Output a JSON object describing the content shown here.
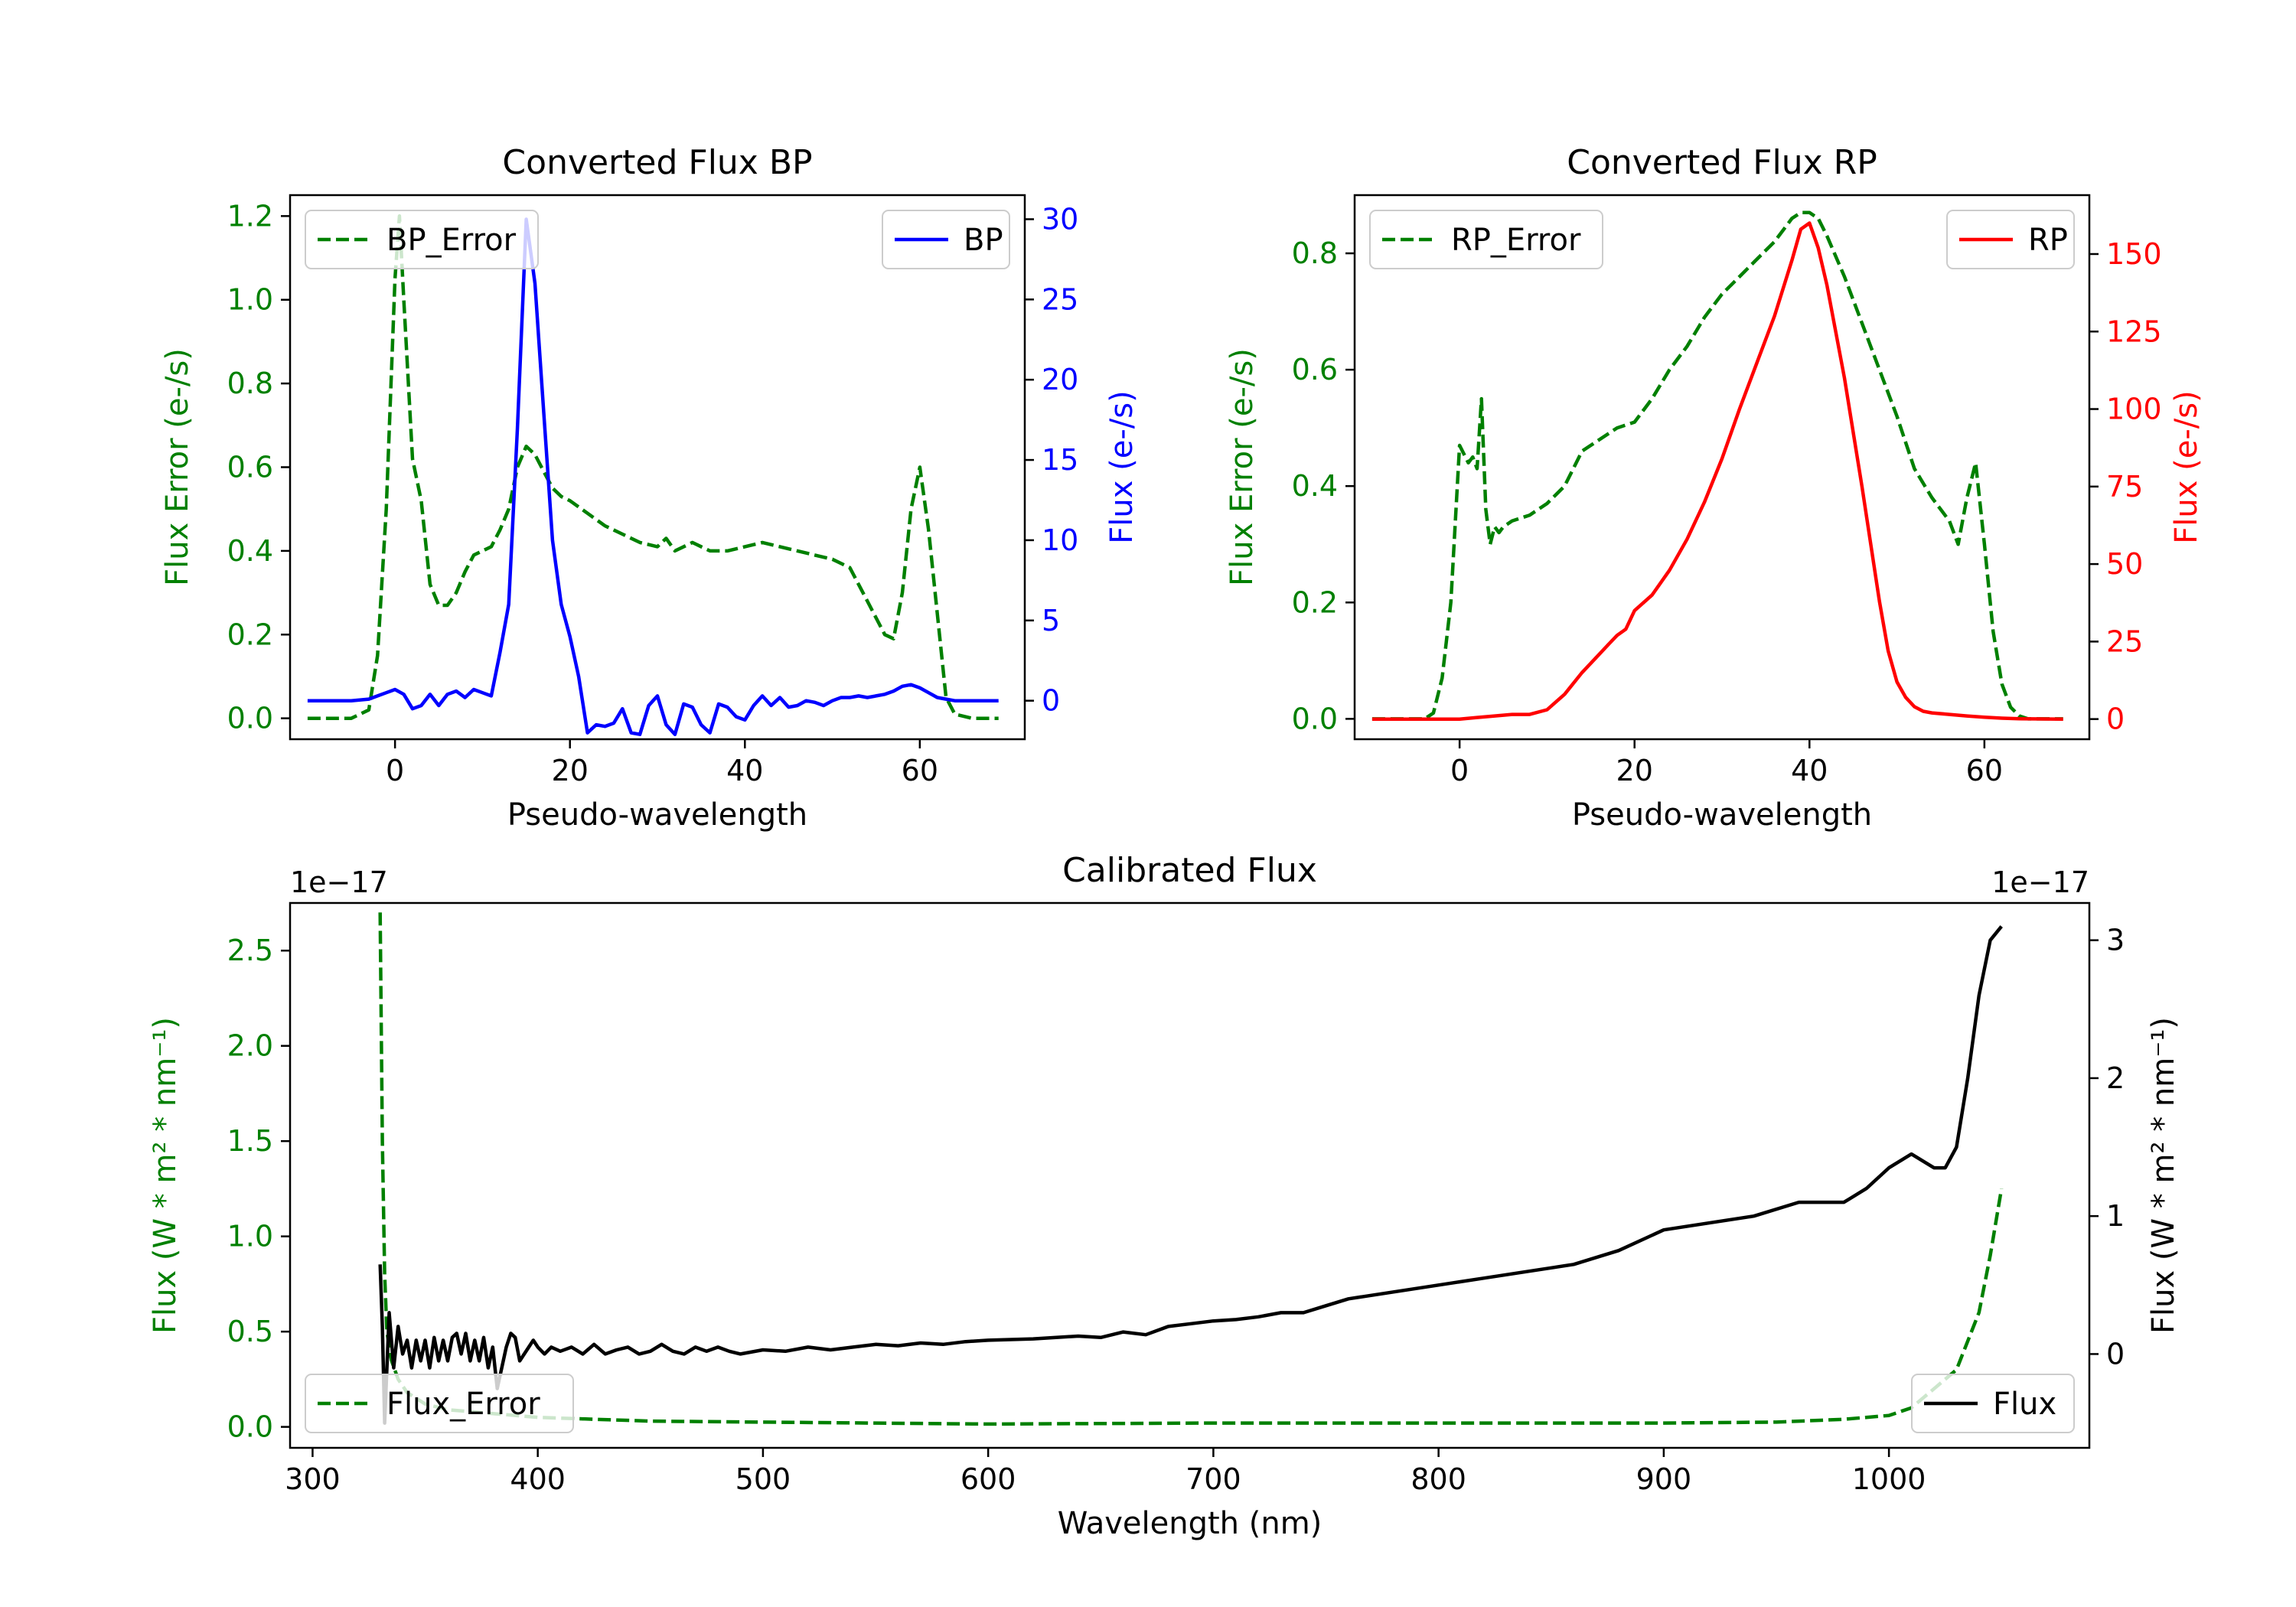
{
  "chart_data": [
    {
      "id": "bp",
      "type": "line",
      "title": "Converted Flux BP",
      "xlabel": "Pseudo-wavelength",
      "ylabel_left": "Flux Error (e-/s)",
      "ylabel_right": "Flux (e-/s)",
      "xlim": [
        -12,
        72
      ],
      "ylim_left": [
        -0.05,
        1.25
      ],
      "ylim_right": [
        -2.4,
        31.5
      ],
      "xticks": [
        0,
        20,
        40,
        60
      ],
      "yticks_left": [
        0.0,
        0.2,
        0.4,
        0.6,
        0.8,
        1.0,
        1.2
      ],
      "yticks_right": [
        0,
        5,
        10,
        15,
        20,
        25,
        30
      ],
      "legend_left_position": "upper-left",
      "legend_right_position": "upper-right",
      "series": [
        {
          "name": "BP_Error",
          "axis": "left",
          "color": "#008000",
          "style": "dashed",
          "x": [
            -10,
            -5,
            -3,
            -2,
            -1,
            0,
            0.5,
            1,
            2,
            3,
            4,
            5,
            6,
            7,
            8,
            9,
            10,
            11,
            12,
            13,
            14,
            15,
            16,
            17,
            18,
            19,
            20,
            22,
            24,
            26,
            28,
            30,
            31,
            32,
            34,
            36,
            38,
            40,
            42,
            44,
            46,
            48,
            50,
            52,
            54,
            55,
            56,
            57,
            58,
            59,
            60,
            61,
            62,
            63,
            64,
            66,
            69
          ],
          "y": [
            0,
            0,
            0.02,
            0.15,
            0.5,
            1.05,
            1.2,
            1.0,
            0.62,
            0.52,
            0.32,
            0.27,
            0.27,
            0.3,
            0.35,
            0.39,
            0.4,
            0.41,
            0.45,
            0.5,
            0.6,
            0.65,
            0.63,
            0.59,
            0.55,
            0.53,
            0.52,
            0.49,
            0.46,
            0.44,
            0.42,
            0.41,
            0.43,
            0.4,
            0.42,
            0.4,
            0.4,
            0.41,
            0.42,
            0.41,
            0.4,
            0.39,
            0.38,
            0.36,
            0.28,
            0.24,
            0.2,
            0.19,
            0.3,
            0.5,
            0.6,
            0.45,
            0.25,
            0.05,
            0.01,
            0,
            0
          ]
        },
        {
          "name": "BP",
          "axis": "right",
          "color": "#0000ff",
          "style": "solid",
          "x": [
            -10,
            -5,
            -3,
            -2,
            -1,
            0,
            1,
            2,
            3,
            4,
            5,
            6,
            7,
            8,
            9,
            10,
            11,
            12,
            13,
            14,
            15,
            16,
            17,
            18,
            19,
            20,
            21,
            22,
            23,
            24,
            25,
            26,
            27,
            28,
            29,
            30,
            31,
            32,
            33,
            34,
            35,
            36,
            37,
            38,
            39,
            40,
            41,
            42,
            43,
            44,
            45,
            46,
            47,
            48,
            49,
            50,
            51,
            52,
            53,
            54,
            55,
            56,
            57,
            58,
            59,
            60,
            61,
            62,
            63,
            64,
            66,
            69
          ],
          "y": [
            0,
            0,
            0.1,
            0.3,
            0.5,
            0.7,
            0.4,
            -0.5,
            -0.3,
            0.4,
            -0.3,
            0.4,
            0.6,
            0.2,
            0.7,
            0.5,
            0.3,
            3,
            6,
            17,
            30,
            26,
            18,
            10,
            6,
            4,
            1.5,
            -2,
            -1.5,
            -1.6,
            -1.4,
            -0.5,
            -2,
            -2.1,
            -0.3,
            0.3,
            -1.5,
            -2.1,
            -0.2,
            -0.4,
            -1.5,
            -2,
            -0.2,
            -0.4,
            -1,
            -1.2,
            -0.3,
            0.3,
            -0.3,
            0.2,
            -0.4,
            -0.3,
            0,
            -0.1,
            -0.3,
            0,
            0.2,
            0.2,
            0.3,
            0.2,
            0.3,
            0.4,
            0.6,
            0.9,
            1,
            0.8,
            0.5,
            0.2,
            0.1,
            0,
            0,
            0
          ]
        }
      ]
    },
    {
      "id": "rp",
      "type": "line",
      "title": "Converted Flux RP",
      "xlabel": "Pseudo-wavelength",
      "ylabel_left": "Flux Error (e-/s)",
      "ylabel_right": "Flux (e-/s)",
      "xlim": [
        -12,
        72
      ],
      "ylim_left": [
        -0.035,
        0.9
      ],
      "ylim_right": [
        -6.5,
        169
      ],
      "xticks": [
        0,
        20,
        40,
        60
      ],
      "yticks_left": [
        0.0,
        0.2,
        0.4,
        0.6,
        0.8
      ],
      "yticks_right": [
        0,
        25,
        50,
        75,
        100,
        125,
        150
      ],
      "legend_left_position": "upper-left",
      "legend_right_position": "upper-right",
      "series": [
        {
          "name": "RP_Error",
          "axis": "left",
          "color": "#008000",
          "style": "dashed",
          "x": [
            -10,
            -5,
            -4,
            -3,
            -2,
            -1,
            0,
            1,
            1.5,
            2,
            2.5,
            3,
            3.5,
            4,
            4.5,
            5,
            6,
            8,
            10,
            12,
            14,
            16,
            18,
            20,
            22,
            24,
            26,
            28,
            30,
            32,
            34,
            36,
            38,
            39,
            40,
            41,
            42,
            44,
            46,
            48,
            50,
            52,
            54,
            56,
            57,
            58,
            59,
            60,
            61,
            62,
            63,
            64,
            65,
            69
          ],
          "y": [
            0,
            0,
            0,
            0.01,
            0.07,
            0.2,
            0.47,
            0.44,
            0.45,
            0.43,
            0.55,
            0.36,
            0.3,
            0.33,
            0.32,
            0.33,
            0.34,
            0.35,
            0.37,
            0.4,
            0.46,
            0.48,
            0.5,
            0.51,
            0.55,
            0.6,
            0.64,
            0.69,
            0.73,
            0.76,
            0.79,
            0.82,
            0.86,
            0.87,
            0.87,
            0.86,
            0.83,
            0.76,
            0.68,
            0.6,
            0.52,
            0.43,
            0.38,
            0.34,
            0.3,
            0.38,
            0.44,
            0.3,
            0.15,
            0.06,
            0.02,
            0.005,
            0,
            0
          ]
        },
        {
          "name": "RP",
          "axis": "right",
          "color": "#ff0000",
          "style": "solid",
          "x": [
            -10,
            -5,
            0,
            2,
            4,
            6,
            8,
            10,
            12,
            14,
            16,
            17,
            18,
            19,
            20,
            22,
            24,
            26,
            28,
            30,
            32,
            34,
            36,
            38,
            39,
            40,
            41,
            42,
            44,
            46,
            48,
            49,
            50,
            51,
            52,
            53,
            54,
            56,
            58,
            60,
            62,
            64,
            69
          ],
          "y": [
            0,
            0,
            0,
            0.5,
            1,
            1.5,
            1.5,
            3,
            8,
            15,
            21,
            24,
            27,
            29,
            35,
            40,
            48,
            58,
            70,
            84,
            100,
            115,
            130,
            148,
            158,
            160,
            152,
            140,
            110,
            75,
            38,
            22,
            12,
            7,
            4,
            2.5,
            2,
            1.5,
            1,
            0.6,
            0.3,
            0.1,
            0
          ]
        }
      ]
    },
    {
      "id": "cal",
      "type": "line",
      "title": "Calibrated Flux",
      "xlabel": "Wavelength (nm)",
      "ylabel_left": "Flux (W * m² * nm⁻¹)",
      "ylabel_right": "Flux (W * m² * nm⁻¹)",
      "offset_left": "1e−17",
      "offset_right": "1e−17",
      "xlim": [
        290,
        1089
      ],
      "ylim_left": [
        -0.11,
        2.75
      ],
      "ylim_right": [
        -0.68,
        3.27
      ],
      "xticks": [
        300,
        400,
        500,
        600,
        700,
        800,
        900,
        1000
      ],
      "yticks_left": [
        0.0,
        0.5,
        1.0,
        1.5,
        2.0,
        2.5
      ],
      "yticks_right": [
        0,
        1,
        2,
        3
      ],
      "legend_left_position": "lower-left",
      "legend_right_position": "lower-right",
      "series": [
        {
          "name": "Flux_Error",
          "axis": "left",
          "color": "#008000",
          "style": "dashed",
          "x": [
            330,
            331,
            332,
            333,
            335,
            338,
            342,
            350,
            360,
            380,
            400,
            450,
            500,
            600,
            700,
            800,
            900,
            950,
            980,
            1000,
            1010,
            1020,
            1030,
            1040,
            1045,
            1050
          ],
          "y": [
            2.7,
            1.5,
            0.8,
            0.5,
            0.35,
            0.25,
            0.18,
            0.12,
            0.09,
            0.07,
            0.05,
            0.03,
            0.025,
            0.015,
            0.02,
            0.02,
            0.02,
            0.025,
            0.04,
            0.06,
            0.1,
            0.2,
            0.3,
            0.6,
            0.9,
            1.25
          ]
        },
        {
          "name": "Flux",
          "axis": "right",
          "color": "#000000",
          "style": "solid",
          "x": [
            330,
            331,
            332,
            334,
            336,
            338,
            340,
            342,
            344,
            346,
            348,
            350,
            352,
            354,
            356,
            358,
            360,
            362,
            364,
            366,
            368,
            370,
            372,
            374,
            376,
            378,
            380,
            382,
            384,
            386,
            388,
            390,
            392,
            394,
            396,
            398,
            400,
            403,
            406,
            410,
            415,
            420,
            425,
            430,
            435,
            440,
            445,
            450,
            455,
            460,
            465,
            470,
            475,
            480,
            485,
            490,
            500,
            510,
            520,
            530,
            540,
            550,
            560,
            570,
            580,
            590,
            600,
            620,
            640,
            650,
            660,
            670,
            680,
            690,
            700,
            710,
            720,
            730,
            740,
            750,
            760,
            780,
            800,
            820,
            840,
            860,
            880,
            900,
            920,
            940,
            960,
            980,
            990,
            1000,
            1010,
            1020,
            1025,
            1030,
            1035,
            1040,
            1045,
            1050
          ],
          "y": [
            0.65,
            0.2,
            -0.5,
            0.3,
            -0.1,
            0.2,
            0,
            0.1,
            -0.1,
            0.1,
            -0.05,
            0.1,
            -0.1,
            0.12,
            -0.05,
            0.1,
            -0.05,
            0.12,
            0.15,
            0,
            0.15,
            -0.05,
            0.1,
            -0.05,
            0.12,
            -0.1,
            0.05,
            -0.25,
            -0.1,
            0.05,
            0.15,
            0.12,
            -0.05,
            0,
            0.05,
            0.1,
            0.05,
            0.0,
            0.05,
            0.02,
            0.05,
            0.0,
            0.07,
            0.0,
            0.03,
            0.05,
            0.0,
            0.02,
            0.07,
            0.02,
            0.0,
            0.05,
            0.02,
            0.05,
            0.02,
            0.0,
            0.03,
            0.02,
            0.05,
            0.03,
            0.05,
            0.07,
            0.06,
            0.08,
            0.07,
            0.09,
            0.1,
            0.11,
            0.13,
            0.12,
            0.16,
            0.14,
            0.2,
            0.22,
            0.24,
            0.25,
            0.27,
            0.3,
            0.3,
            0.35,
            0.4,
            0.45,
            0.5,
            0.55,
            0.6,
            0.65,
            0.75,
            0.9,
            0.95,
            1.0,
            1.1,
            1.1,
            1.2,
            1.35,
            1.45,
            1.35,
            1.35,
            1.5,
            2.0,
            2.6,
            3.0,
            3.1
          ]
        }
      ]
    }
  ]
}
